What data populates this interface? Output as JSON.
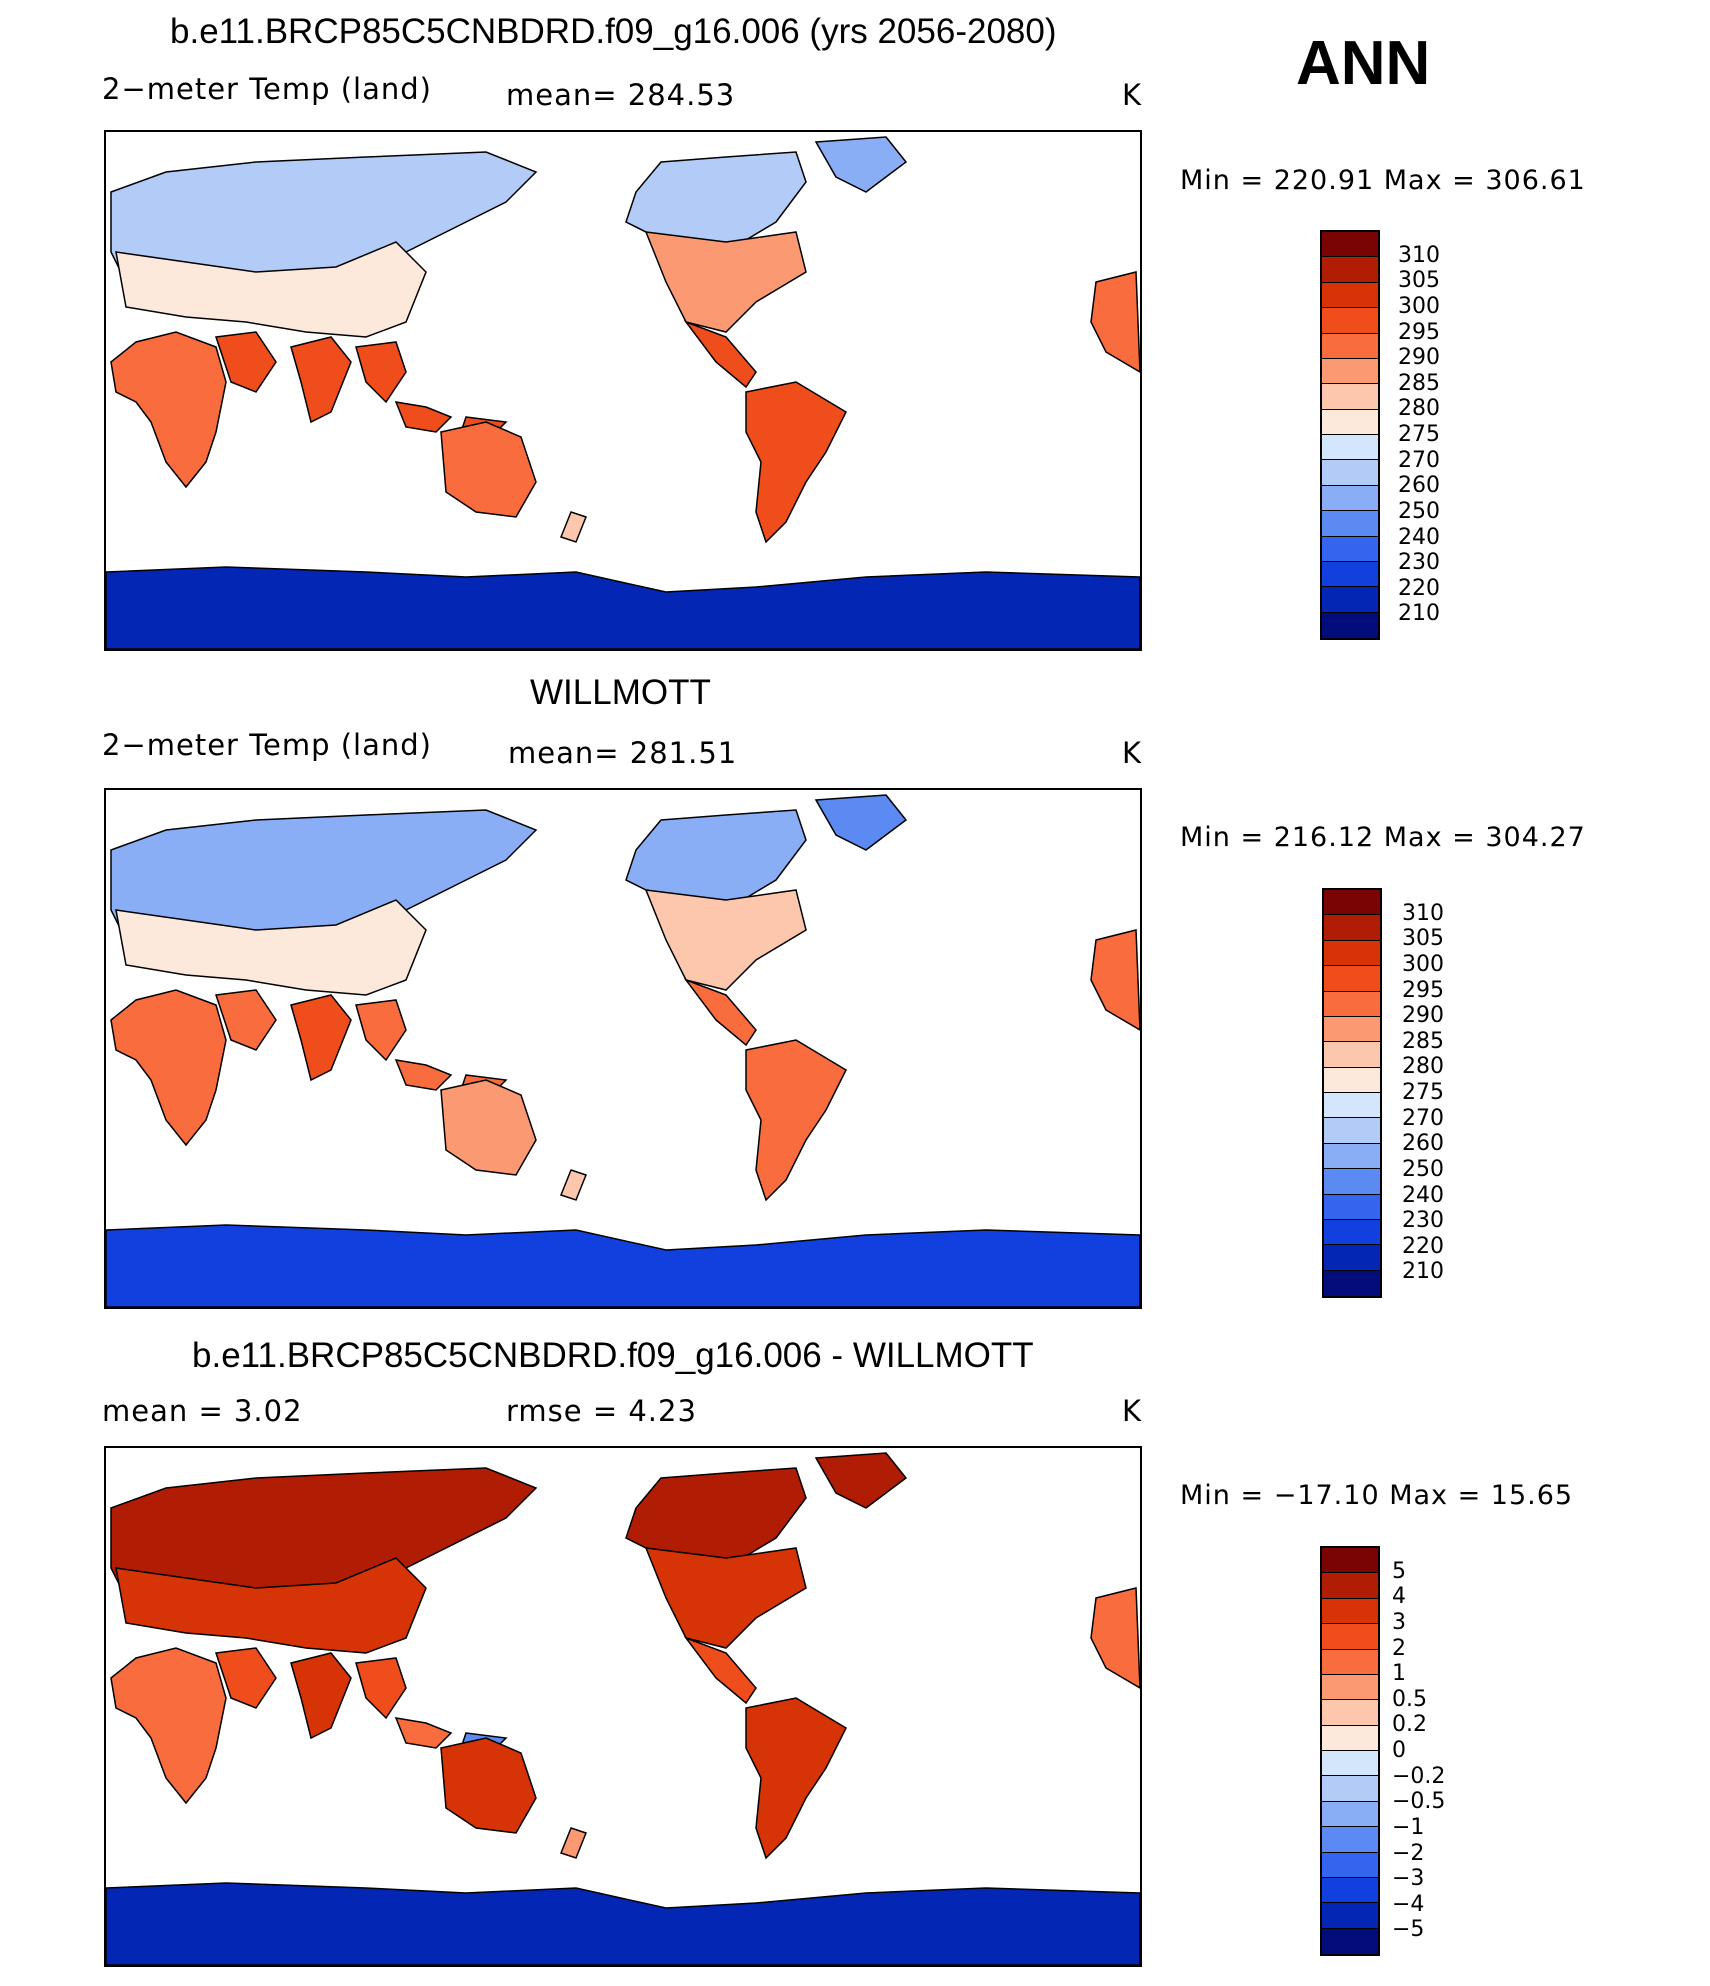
{
  "season": "ANN",
  "panels": [
    {
      "title": "b.e11.BRCP85C5CNBDRD.f09_g16.006 (yrs 2056-2080)",
      "variable": "2−meter Temp (land)",
      "stat": "mean=  284.53",
      "units": "K",
      "minmax": "Min  =  220.91  Max  =  306.61",
      "colorbar": "abs"
    },
    {
      "title": "WILLMOTT",
      "variable": "2−meter Temp (land)",
      "stat": "mean=  281.51",
      "units": "K",
      "minmax": "Min  =  216.12  Max  =  304.27",
      "colorbar": "abs"
    },
    {
      "title": "b.e11.BRCP85C5CNBDRD.f09_g16.006 - WILLMOTT",
      "mean_label": "mean  =       3.02",
      "rmse_label": "rmse  =      4.23",
      "units": "K",
      "minmax": "Min  =  −17.10  Max  =     15.65",
      "colorbar": "diff"
    }
  ],
  "chart_data": [
    {
      "type": "heatmap",
      "title": "b.e11.BRCP85C5CNBDRD.f09_g16.006 (yrs 2056-2080)",
      "variable": "2−meter Temp (land)",
      "units": "K",
      "mean": 284.53,
      "min": 220.91,
      "max": 306.61,
      "colorbar_levels": [
        "310",
        "305",
        "300",
        "295",
        "290",
        "285",
        "280",
        "275",
        "270",
        "260",
        "250",
        "240",
        "230",
        "220",
        "210"
      ]
    },
    {
      "type": "heatmap",
      "title": "WILLMOTT",
      "variable": "2−meter Temp (land)",
      "units": "K",
      "mean": 281.51,
      "min": 216.12,
      "max": 304.27,
      "colorbar_levels": [
        "310",
        "305",
        "300",
        "295",
        "290",
        "285",
        "280",
        "275",
        "270",
        "260",
        "250",
        "240",
        "230",
        "220",
        "210"
      ]
    },
    {
      "type": "heatmap",
      "title": "b.e11.BRCP85C5CNBDRD.f09_g16.006 - WILLMOTT",
      "units": "K",
      "mean": 3.02,
      "rmse": 4.23,
      "min": -17.1,
      "max": 15.65,
      "colorbar_levels": [
        "5",
        "4",
        "3",
        "2",
        "1",
        "0.5",
        "0.2",
        "0",
        "−0.2",
        "−0.5",
        "−1",
        "−2",
        "−3",
        "−4",
        "−5"
      ]
    }
  ],
  "colors": {
    "abs": [
      "#7a0403",
      "#b01c04",
      "#d63306",
      "#f04d1c",
      "#f86c3e",
      "#fb9a72",
      "#fdc7ad",
      "#fde9dc",
      "#d4e6fb",
      "#b2cbf7",
      "#8aaef5",
      "#5b8af2",
      "#3564ef",
      "#1240df",
      "#0326b4",
      "#020c7a"
    ],
    "diff": [
      "#7a0403",
      "#b01c04",
      "#d63306",
      "#f04d1c",
      "#f86c3e",
      "#fb9a72",
      "#fdc7ad",
      "#fde9dc",
      "#d4e6fb",
      "#b2cbf7",
      "#8aaef5",
      "#5b8af2",
      "#3564ef",
      "#1240df",
      "#0326b4",
      "#020c7a"
    ]
  }
}
